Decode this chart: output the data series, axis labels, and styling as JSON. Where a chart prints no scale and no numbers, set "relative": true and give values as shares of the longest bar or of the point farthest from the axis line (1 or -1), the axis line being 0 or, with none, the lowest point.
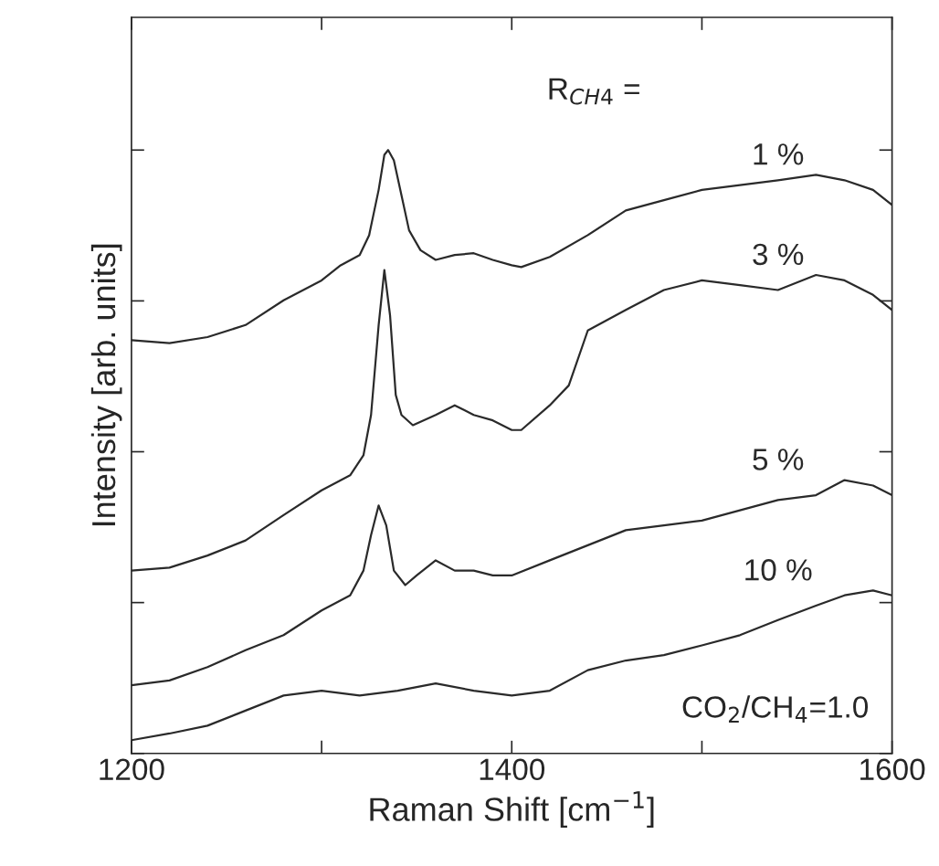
{
  "chart_data": {
    "type": "line",
    "relative": true,
    "xlabel": "Raman Shift [cm$^{−1}$]",
    "ylabel": "Intensity [arb. units]",
    "xlim": [
      1200,
      1600
    ],
    "xticks": [
      1200,
      {
        "value": 1300,
        "label": null
      },
      1400,
      {
        "value": 1500,
        "label": null
      },
      1600
    ],
    "grid": false,
    "marker": "none",
    "line_style": "solid",
    "annotations": [
      "R$_{CH4}$ =",
      "CO$_{2}$/CH$_{4}$=1.0"
    ],
    "series": [
      {
        "name": "1 %",
        "color": "#2a2a2a",
        "x": [
          1200,
          1220,
          1240,
          1260,
          1280,
          1300,
          1310,
          1320,
          1325,
          1330,
          1333,
          1335,
          1338,
          1342,
          1346,
          1352,
          1360,
          1370,
          1380,
          1390,
          1400,
          1405,
          1420,
          1440,
          1460,
          1480,
          1500,
          1520,
          1540,
          1560,
          1575,
          1590,
          1600
        ],
        "values": [
          0.685,
          0.68,
          0.69,
          0.71,
          0.751,
          0.784,
          0.809,
          0.826,
          0.859,
          0.934,
          0.992,
          1.0,
          0.983,
          0.925,
          0.867,
          0.834,
          0.818,
          0.826,
          0.829,
          0.818,
          0.809,
          0.806,
          0.823,
          0.859,
          0.9,
          0.917,
          0.934,
          0.942,
          0.95,
          0.959,
          0.95,
          0.934,
          0.909
        ]
      },
      {
        "name": "3 %",
        "color": "#2a2a2a",
        "x": [
          1200,
          1220,
          1240,
          1260,
          1280,
          1300,
          1315,
          1322,
          1326,
          1330,
          1333,
          1336,
          1339,
          1342,
          1348,
          1360,
          1370,
          1380,
          1390,
          1400,
          1405,
          1420,
          1430,
          1440,
          1460,
          1480,
          1500,
          1520,
          1540,
          1560,
          1575,
          1590,
          1600
        ],
        "values": [
          0.303,
          0.308,
          0.328,
          0.353,
          0.395,
          0.436,
          0.461,
          0.494,
          0.561,
          0.71,
          0.801,
          0.726,
          0.594,
          0.561,
          0.544,
          0.561,
          0.577,
          0.561,
          0.552,
          0.536,
          0.536,
          0.577,
          0.61,
          0.701,
          0.735,
          0.768,
          0.784,
          0.776,
          0.768,
          0.793,
          0.784,
          0.76,
          0.735
        ]
      },
      {
        "name": "5 %",
        "color": "#2a2a2a",
        "x": [
          1200,
          1220,
          1240,
          1260,
          1280,
          1300,
          1315,
          1322,
          1326,
          1330,
          1334,
          1338,
          1344,
          1350,
          1360,
          1370,
          1380,
          1390,
          1400,
          1420,
          1440,
          1460,
          1480,
          1500,
          1520,
          1540,
          1560,
          1575,
          1590,
          1600
        ],
        "values": [
          0.113,
          0.121,
          0.143,
          0.171,
          0.196,
          0.237,
          0.262,
          0.303,
          0.362,
          0.411,
          0.378,
          0.303,
          0.279,
          0.295,
          0.32,
          0.303,
          0.303,
          0.295,
          0.295,
          0.32,
          0.345,
          0.37,
          0.378,
          0.386,
          0.403,
          0.42,
          0.428,
          0.453,
          0.444,
          0.428
        ]
      },
      {
        "name": "10 %",
        "color": "#2a2a2a",
        "x": [
          1200,
          1220,
          1240,
          1260,
          1280,
          1300,
          1320,
          1340,
          1360,
          1380,
          1400,
          1420,
          1440,
          1460,
          1480,
          1500,
          1520,
          1540,
          1560,
          1575,
          1590,
          1600
        ],
        "values": [
          0.022,
          0.033,
          0.046,
          0.071,
          0.096,
          0.104,
          0.096,
          0.104,
          0.116,
          0.104,
          0.096,
          0.104,
          0.138,
          0.154,
          0.163,
          0.179,
          0.196,
          0.221,
          0.245,
          0.262,
          0.27,
          0.262
        ]
      }
    ]
  }
}
